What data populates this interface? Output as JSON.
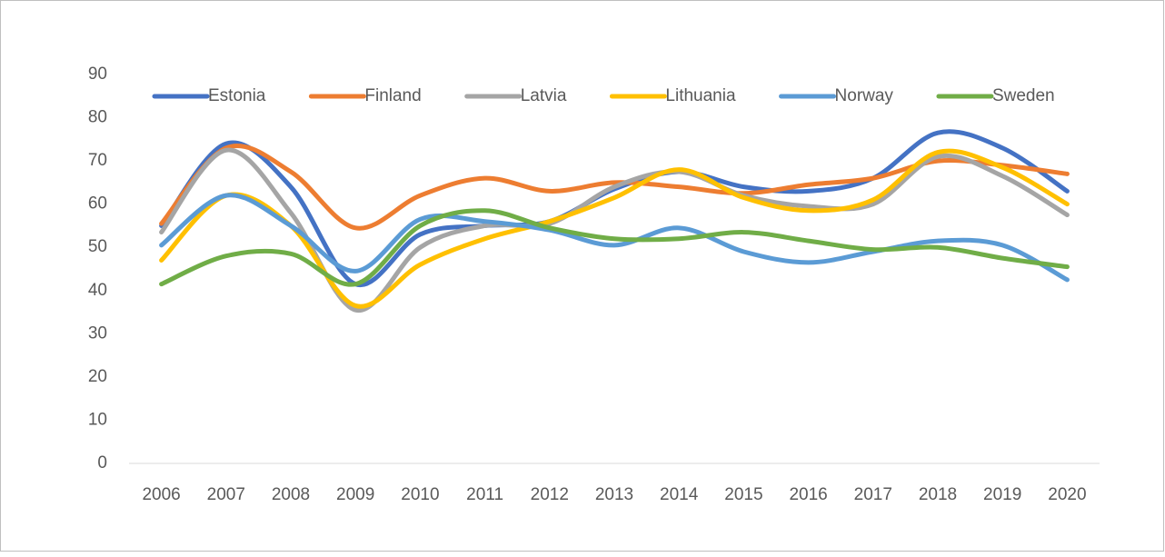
{
  "chart_data": {
    "type": "line",
    "smooth": true,
    "grid": false,
    "legend": "top",
    "categories": [
      "2006",
      "2007",
      "2008",
      "2009",
      "2010",
      "2011",
      "2012",
      "2013",
      "2014",
      "2015",
      "2016",
      "2017",
      "2018",
      "2019",
      "2020"
    ],
    "ylim": [
      0,
      90
    ],
    "yticks": [
      0,
      10,
      20,
      30,
      40,
      50,
      60,
      70,
      80,
      90
    ],
    "series": [
      {
        "name": "Estonia",
        "color": "#4472c4",
        "values": [
          55,
          74,
          64,
          41.5,
          53,
          55,
          56,
          63.5,
          67.5,
          64,
          63,
          66,
          76.5,
          73,
          63
        ]
      },
      {
        "name": "Finland",
        "color": "#ed7d31",
        "values": [
          55.5,
          73,
          67.5,
          54.5,
          62,
          66,
          63,
          65,
          64,
          62.5,
          64.5,
          66,
          70,
          69,
          67
        ]
      },
      {
        "name": "Latvia",
        "color": "#a5a5a5",
        "values": [
          53.5,
          72.5,
          58,
          35.5,
          50,
          55,
          55.5,
          64,
          67.5,
          62,
          59.5,
          60,
          71,
          66.5,
          57.5
        ]
      },
      {
        "name": "Lithuania",
        "color": "#ffc000",
        "values": [
          47,
          62,
          55,
          36.5,
          46,
          52,
          56,
          61.5,
          68,
          61.5,
          58.5,
          61,
          72,
          68.5,
          60
        ]
      },
      {
        "name": "Norway",
        "color": "#5b9bd5",
        "values": [
          50.5,
          62,
          55,
          44.5,
          56.5,
          56,
          54,
          50.5,
          54.5,
          49,
          46.5,
          49,
          51.5,
          50.5,
          42.5
        ]
      },
      {
        "name": "Sweden",
        "color": "#70ad47",
        "values": [
          41.5,
          48,
          48.5,
          41.5,
          55,
          58.5,
          54.5,
          52,
          52,
          53.5,
          51.5,
          49.5,
          50,
          47.5,
          45.5
        ]
      }
    ]
  }
}
